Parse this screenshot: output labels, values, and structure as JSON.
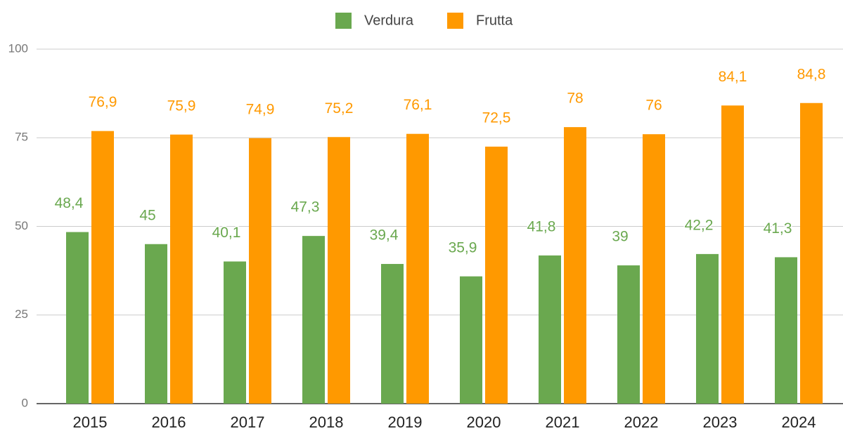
{
  "chart_data": {
    "type": "bar",
    "categories": [
      "2015",
      "2016",
      "2017",
      "2018",
      "2019",
      "2020",
      "2021",
      "2022",
      "2023",
      "2024"
    ],
    "series": [
      {
        "name": "Verdura",
        "color": "#6aa84f",
        "values": [
          48.4,
          45,
          40.1,
          47.3,
          39.4,
          35.9,
          41.8,
          39,
          42.2,
          41.3
        ],
        "value_labels": [
          "48,4",
          "45",
          "40,1",
          "47,3",
          "39,4",
          "35,9",
          "41,8",
          "39",
          "42,2",
          "41,3"
        ]
      },
      {
        "name": "Frutta",
        "color": "#ff9900",
        "values": [
          76.9,
          75.9,
          74.9,
          75.2,
          76.1,
          72.5,
          78,
          76,
          84.1,
          84.8
        ],
        "value_labels": [
          "76,9",
          "75,9",
          "74,9",
          "75,2",
          "76,1",
          "72,5",
          "78",
          "76",
          "84,1",
          "84,8"
        ]
      }
    ],
    "ylim": [
      0,
      100
    ],
    "yticks": [
      0,
      25,
      50,
      75,
      100
    ],
    "grid": true,
    "legend": "top"
  }
}
